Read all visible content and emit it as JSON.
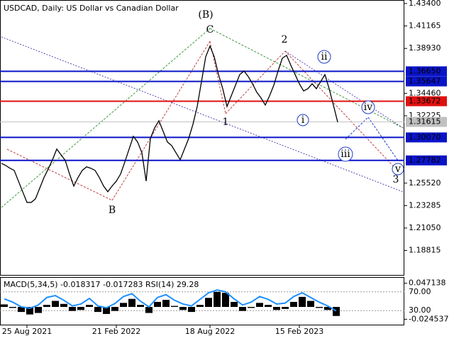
{
  "chart_data": [
    {
      "type": "line",
      "title": "USDCAD, Daily:  US Dollar vs Canadian Dollar",
      "categories": [
        null,
        null,
        null,
        null,
        null,
        null,
        "25 Aug 2021",
        null,
        null,
        null,
        null,
        null,
        null,
        null,
        null,
        null,
        null,
        null,
        null,
        null,
        null,
        null,
        null,
        null,
        null,
        null,
        null,
        "21 Feb 2022",
        null,
        null,
        null,
        null,
        null,
        null,
        null,
        null,
        null,
        null,
        null,
        null,
        null,
        null,
        null,
        null,
        null,
        null,
        null,
        null,
        null,
        "18 Aug 2022",
        null,
        null,
        null,
        null,
        null,
        null,
        null,
        null,
        null,
        null,
        null,
        null,
        null,
        null,
        null,
        null,
        null,
        null,
        null,
        null,
        "15 Feb 2023",
        null,
        null,
        null,
        null,
        null,
        null,
        null,
        null,
        null
      ],
      "color": "#000000",
      "values": [
        1.2749,
        1.2728,
        1.27,
        1.2679,
        1.2572,
        1.2466,
        1.236,
        1.236,
        1.2396,
        1.2502,
        1.2608,
        1.2693,
        1.2785,
        1.2891,
        1.2834,
        1.2778,
        1.2643,
        1.2523,
        1.2608,
        1.2679,
        1.2714,
        1.27,
        1.2679,
        1.2608,
        1.2523,
        1.2466,
        1.2523,
        1.2572,
        1.2643,
        1.2763,
        1.2891,
        1.3018,
        1.2961,
        1.2855,
        1.2572,
        1.2997,
        1.3103,
        1.3173,
        1.3067,
        1.2961,
        1.2926,
        1.2855,
        1.2785,
        1.2891,
        1.2997,
        1.3138,
        1.3315,
        1.3562,
        1.381,
        1.3916,
        1.381,
        1.3633,
        1.3492,
        1.3315,
        1.3421,
        1.3527,
        1.3633,
        1.3668,
        1.3612,
        1.3541,
        1.3456,
        1.34,
        1.3329,
        1.3421,
        1.3527,
        1.3668,
        1.3796,
        1.3824,
        1.3725,
        1.3633,
        1.3541,
        1.347,
        1.3492,
        1.3541,
        1.3492,
        1.3562,
        1.3633,
        1.3492,
        1.3329,
        1.3159
      ],
      "ylim": [
        1.1631,
        1.4375
      ],
      "yticks": [
        {
          "value": 1.434,
          "label": "1.43400"
        },
        {
          "value": 1.41165,
          "label": "1.41165"
        },
        {
          "value": 1.3893,
          "label": "1.38930"
        },
        {
          "value": 1.3446,
          "label": "1.34460"
        },
        {
          "value": 1.32225,
          "label": "1.32225"
        },
        {
          "value": 1.2552,
          "label": "1.25520"
        },
        {
          "value": 1.23285,
          "label": "1.23285"
        },
        {
          "value": 1.2105,
          "label": "1.21050"
        },
        {
          "value": 1.18815,
          "label": "1.18815"
        }
      ],
      "levels": [
        {
          "value": 1.3665,
          "label": "1.36650",
          "color": "#0a14c8"
        },
        {
          "value": 1.35647,
          "label": "1.35647",
          "color": "#0a14c8"
        },
        {
          "value": 1.33672,
          "label": "1.33672",
          "color": "#e01010"
        },
        {
          "value": 1.31615,
          "label": "1.31615",
          "color": "#c0c0c0"
        },
        {
          "value": 1.3007,
          "label": "1.30070",
          "color": "#0a14c8"
        },
        {
          "value": 1.27782,
          "label": "1.27782",
          "color": "#0a14c8"
        }
      ],
      "annotations": [
        {
          "text": "(B)",
          "color": "#2e8b2e"
        },
        {
          "text": "C",
          "color": "#a52a2a"
        },
        {
          "text": "B",
          "color": "#a52a2a"
        },
        {
          "text": "1",
          "color": "#a52a2a"
        },
        {
          "text": "2",
          "color": "#a52a2a"
        },
        {
          "text": "3",
          "color": "#a52a2a"
        },
        {
          "text": "i",
          "color": "#1e3cc8"
        },
        {
          "text": "ii",
          "color": "#1e3cc8"
        },
        {
          "text": "iii",
          "color": "#1e3cc8"
        },
        {
          "text": "iv",
          "color": "#1e3cc8"
        },
        {
          "text": "v",
          "color": "#1e3cc8"
        }
      ]
    },
    {
      "type": "macd",
      "title": "MACD(5,34,5) -0.018317 -0.017283 RSI(14) 29.28",
      "series": [
        {
          "color": "#000000",
          "values": [
            0.005,
            -0.002,
            -0.01,
            -0.015,
            -0.012,
            0.004,
            0.012,
            0.006,
            -0.008,
            -0.006,
            0.004,
            -0.01,
            -0.014,
            -0.008,
            0.008,
            0.016,
            0.004,
            -0.012,
            0.01,
            0.014,
            0.002,
            -0.006,
            -0.01,
            0.004,
            0.018,
            0.03,
            0.028,
            0.01,
            -0.008,
            -0.002,
            0.008,
            0.004,
            -0.006,
            -0.004,
            0.01,
            0.02,
            0.012,
            -0.002,
            -0.006,
            -0.018
          ]
        },
        {
          "color": "#1e90ff",
          "axis": "y2",
          "values": [
            55,
            48,
            38,
            35,
            42,
            58,
            62,
            52,
            40,
            44,
            56,
            40,
            36,
            45,
            60,
            66,
            50,
            38,
            58,
            64,
            52,
            44,
            40,
            54,
            68,
            74,
            70,
            55,
            42,
            48,
            60,
            54,
            44,
            46,
            60,
            68,
            58,
            48,
            40,
            29.28
          ]
        }
      ],
      "ylim": [
        -0.0353,
        0.058
      ],
      "yticks": [
        0.047138,
        -0.024537
      ],
      "y2lim": [
        0,
        100
      ],
      "y2ticks": [
        {
          "value": 70,
          "label": "70.00"
        },
        {
          "value": 30,
          "label": "30.00"
        }
      ]
    }
  ]
}
